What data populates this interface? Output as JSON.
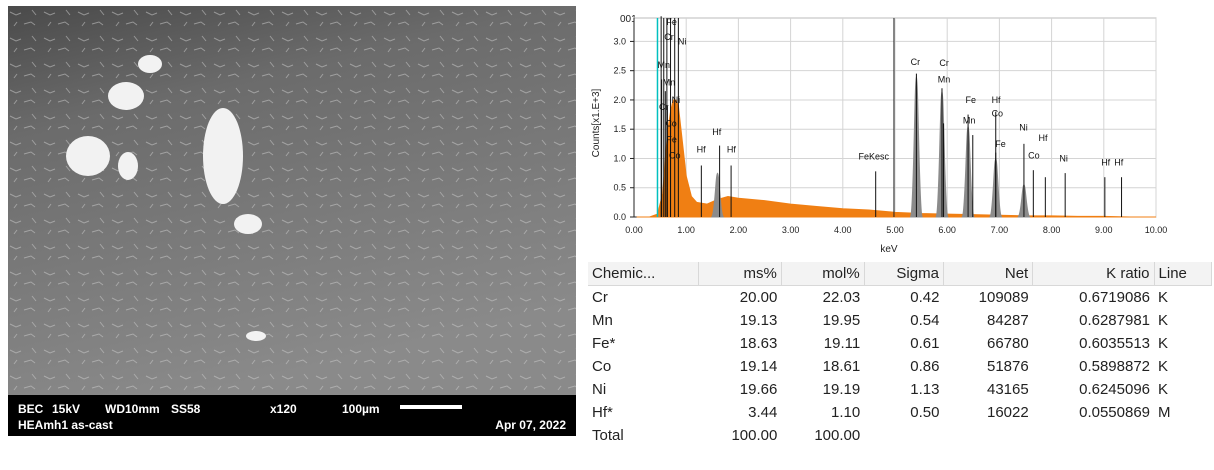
{
  "sem": {
    "mode": "BEC",
    "kv": "15kV",
    "wd": "WD10mm",
    "ss": "SS58",
    "magnification": "x120",
    "scale": "100µm",
    "sample": "HEAmh1 as-cast",
    "date": "Apr 07, 2022"
  },
  "spectrum": {
    "label": "001",
    "colors": {
      "spectrum": "#f07f13",
      "peak_fill": "#8b8b8b",
      "marker": "#00c0c0"
    }
  },
  "chart_data": {
    "type": "area",
    "xlabel": "keV",
    "ylabel": "Counts[x1.E+3]",
    "xlim": [
      0,
      10
    ],
    "ylim": [
      0,
      3.4
    ],
    "xticks": [
      "0.00",
      "1.00",
      "2.00",
      "3.00",
      "4.00",
      "5.00",
      "6.00",
      "7.00",
      "8.00",
      "9.00",
      "10.00"
    ],
    "yticks": [
      "0.0",
      "0.5",
      "1.0",
      "1.5",
      "2.0",
      "2.5",
      "3.0"
    ],
    "grid": true,
    "spectrum": {
      "x": [
        0.05,
        0.3,
        0.45,
        0.55,
        0.6,
        0.65,
        0.7,
        0.75,
        0.8,
        0.85,
        0.9,
        0.95,
        1.0,
        1.1,
        1.2,
        1.4,
        1.6,
        1.8,
        2.0,
        2.5,
        3.0,
        3.5,
        4.0,
        4.5,
        5.0,
        5.5,
        6.0,
        6.5,
        7.0,
        7.5,
        8.0,
        8.5,
        9.0,
        9.5,
        10.0
      ],
      "y": [
        0.0,
        0.0,
        0.05,
        0.4,
        1.0,
        1.5,
        1.8,
        2.0,
        2.0,
        1.9,
        1.5,
        1.1,
        0.7,
        0.35,
        0.25,
        0.22,
        0.3,
        0.35,
        0.32,
        0.28,
        0.22,
        0.18,
        0.14,
        0.12,
        0.08,
        0.06,
        0.05,
        0.04,
        0.03,
        0.02,
        0.02,
        0.01,
        0.01,
        0.0,
        0.0
      ]
    },
    "peaks": [
      {
        "x": 1.6,
        "height": 0.75
      },
      {
        "x": 5.41,
        "height": 2.4
      },
      {
        "x": 5.9,
        "height": 2.15
      },
      {
        "x": 6.4,
        "height": 1.55
      },
      {
        "x": 6.93,
        "height": 1.0
      },
      {
        "x": 7.47,
        "height": 0.55
      }
    ],
    "annotations": [
      {
        "text": "Fe",
        "x": 0.62,
        "y": 3.28
      },
      {
        "text": "Cr",
        "x": 0.58,
        "y": 3.02
      },
      {
        "text": "Ni",
        "x": 0.84,
        "y": 2.95
      },
      {
        "text": "Mn",
        "x": 0.45,
        "y": 2.55
      },
      {
        "text": "Mn",
        "x": 0.55,
        "y": 2.25
      },
      {
        "text": "Ni",
        "x": 0.72,
        "y": 1.95
      },
      {
        "text": "Cr",
        "x": 0.48,
        "y": 1.83
      },
      {
        "text": "Co",
        "x": 0.6,
        "y": 1.55
      },
      {
        "text": "Fe",
        "x": 0.62,
        "y": 1.27
      },
      {
        "text": "Co",
        "x": 0.67,
        "y": 1.0
      },
      {
        "text": "Hf",
        "x": 1.5,
        "y": 1.4
      },
      {
        "text": "Hf",
        "x": 1.2,
        "y": 1.1
      },
      {
        "text": "Hf",
        "x": 1.78,
        "y": 1.1
      },
      {
        "text": "FeKesc",
        "x": 4.3,
        "y": 0.98
      },
      {
        "text": "Cr",
        "x": 5.3,
        "y": 2.6
      },
      {
        "text": "Cr",
        "x": 5.85,
        "y": 2.58
      },
      {
        "text": "Mn",
        "x": 5.82,
        "y": 2.3
      },
      {
        "text": "Fe",
        "x": 6.35,
        "y": 1.95
      },
      {
        "text": "Hf",
        "x": 6.85,
        "y": 1.95
      },
      {
        "text": "Co",
        "x": 6.85,
        "y": 1.72
      },
      {
        "text": "Mn",
        "x": 6.3,
        "y": 1.6
      },
      {
        "text": "Ni",
        "x": 7.38,
        "y": 1.48
      },
      {
        "text": "Fe",
        "x": 6.92,
        "y": 1.2
      },
      {
        "text": "Hf",
        "x": 7.75,
        "y": 1.3
      },
      {
        "text": "Co",
        "x": 7.55,
        "y": 1.0
      },
      {
        "text": "Ni",
        "x": 8.15,
        "y": 0.95
      },
      {
        "text": "Hf",
        "x": 8.95,
        "y": 0.88
      },
      {
        "text": "Hf",
        "x": 9.2,
        "y": 0.88
      }
    ],
    "markers": [
      {
        "x": 0.52,
        "height": 3.43
      },
      {
        "x": 0.57,
        "height": 3.4
      },
      {
        "x": 0.63,
        "height": 3.4
      },
      {
        "x": 0.7,
        "height": 3.4
      },
      {
        "x": 0.78,
        "height": 3.4
      },
      {
        "x": 0.85,
        "height": 3.4
      },
      {
        "x": 0.53,
        "height": 2.35
      },
      {
        "x": 0.6,
        "height": 2.15
      },
      {
        "x": 0.64,
        "height": 1.9
      },
      {
        "x": 0.7,
        "height": 1.62
      },
      {
        "x": 1.29,
        "height": 0.88
      },
      {
        "x": 1.64,
        "height": 1.22
      },
      {
        "x": 1.86,
        "height": 0.88
      },
      {
        "x": 4.63,
        "height": 0.78
      },
      {
        "x": 5.41,
        "height": 2.45
      },
      {
        "x": 5.9,
        "height": 2.2
      },
      {
        "x": 5.93,
        "height": 1.6
      },
      {
        "x": 6.4,
        "height": 1.75
      },
      {
        "x": 6.49,
        "height": 1.4
      },
      {
        "x": 6.93,
        "height": 1.8
      },
      {
        "x": 6.93,
        "height": 1.1
      },
      {
        "x": 7.47,
        "height": 1.25
      },
      {
        "x": 7.65,
        "height": 0.8
      },
      {
        "x": 7.88,
        "height": 0.68
      },
      {
        "x": 8.26,
        "height": 0.75
      },
      {
        "x": 9.02,
        "height": 0.68
      },
      {
        "x": 9.34,
        "height": 0.68
      }
    ],
    "marker_line": {
      "x": 0.45
    },
    "divider_line": {
      "x": 4.98
    }
  },
  "table": {
    "headers": [
      "Chemic...",
      "ms%",
      "mol%",
      "Sigma",
      "Net",
      "K ratio",
      "Line"
    ],
    "rows": [
      [
        "Cr",
        "20.00",
        "22.03",
        "0.42",
        "109089",
        "0.6719086",
        "K"
      ],
      [
        "Mn",
        "19.13",
        "19.95",
        "0.54",
        "84287",
        "0.6287981",
        "K"
      ],
      [
        "Fe*",
        "18.63",
        "19.11",
        "0.61",
        "66780",
        "0.6035513",
        "K"
      ],
      [
        "Co",
        "19.14",
        "18.61",
        "0.86",
        "51876",
        "0.5898872",
        "K"
      ],
      [
        "Ni",
        "19.66",
        "19.19",
        "1.13",
        "43165",
        "0.6245096",
        "K"
      ],
      [
        "Hf*",
        "3.44",
        "1.10",
        "0.50",
        "16022",
        "0.0550869",
        "M"
      ],
      [
        "Total",
        "100.00",
        "100.00",
        "",
        "",
        "",
        ""
      ]
    ]
  }
}
